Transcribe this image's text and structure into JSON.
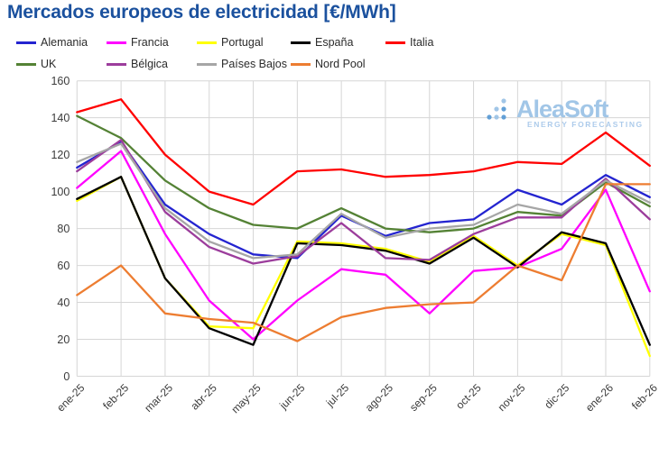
{
  "title": "Mercados europeos de electricidad [€/MWh]",
  "watermark": {
    "name": "AleaSoft",
    "tagline": "ENERGY FORECASTING"
  },
  "chart_data": {
    "type": "line",
    "title": "Mercados europeos de electricidad [€/MWh]",
    "xlabel": "",
    "ylabel": "",
    "ylim": [
      0,
      160
    ],
    "ytick_step": 20,
    "grid": true,
    "legend_position": "top",
    "x_label_rotation": -45,
    "categories": [
      "ene-25",
      "feb-25",
      "mar-25",
      "abr-25",
      "may-25",
      "jun-25",
      "jul-25",
      "ago-25",
      "sep-25",
      "oct-25",
      "nov-25",
      "dic-25",
      "ene-26",
      "feb-26"
    ],
    "series": [
      {
        "name": "Alemania",
        "color": "#2424D0",
        "values": [
          113,
          127,
          93,
          77,
          66,
          64,
          87,
          76,
          83,
          85,
          101,
          93,
          109,
          97
        ]
      },
      {
        "name": "Francia",
        "color": "#FF00FF",
        "values": [
          102,
          122,
          77,
          41,
          20,
          41,
          58,
          55,
          34,
          57,
          59,
          69,
          101,
          46
        ]
      },
      {
        "name": "Portugal",
        "color": "#FFFF00",
        "values": [
          95,
          108,
          53,
          27,
          26,
          73,
          72,
          69,
          62,
          76,
          60,
          77,
          71,
          11
        ]
      },
      {
        "name": "España",
        "color": "#000000",
        "values": [
          96,
          108,
          53,
          26,
          17,
          72,
          71,
          68,
          61,
          75,
          59,
          78,
          72,
          17
        ]
      },
      {
        "name": "Italia",
        "color": "#FF0000",
        "values": [
          143,
          150,
          120,
          100,
          93,
          111,
          112,
          108,
          109,
          111,
          116,
          115,
          132,
          114
        ]
      },
      {
        "name": "UK",
        "color": "#548235",
        "values": [
          141,
          129,
          106,
          91,
          82,
          80,
          91,
          80,
          78,
          80,
          89,
          87,
          105,
          92
        ]
      },
      {
        "name": "Bélgica",
        "color": "#9C3D9C",
        "values": [
          111,
          128,
          89,
          70,
          61,
          65,
          83,
          64,
          63,
          77,
          86,
          86,
          107,
          85
        ]
      },
      {
        "name": "Países Bajos",
        "color": "#A6A6A6",
        "values": [
          116,
          126,
          91,
          73,
          64,
          66,
          88,
          75,
          80,
          82,
          93,
          88,
          106,
          94
        ]
      },
      {
        "name": "Nord Pool",
        "color": "#ED7D31",
        "values": [
          44,
          60,
          34,
          31,
          29,
          19,
          32,
          37,
          39,
          40,
          60,
          52,
          104,
          104
        ]
      }
    ]
  }
}
